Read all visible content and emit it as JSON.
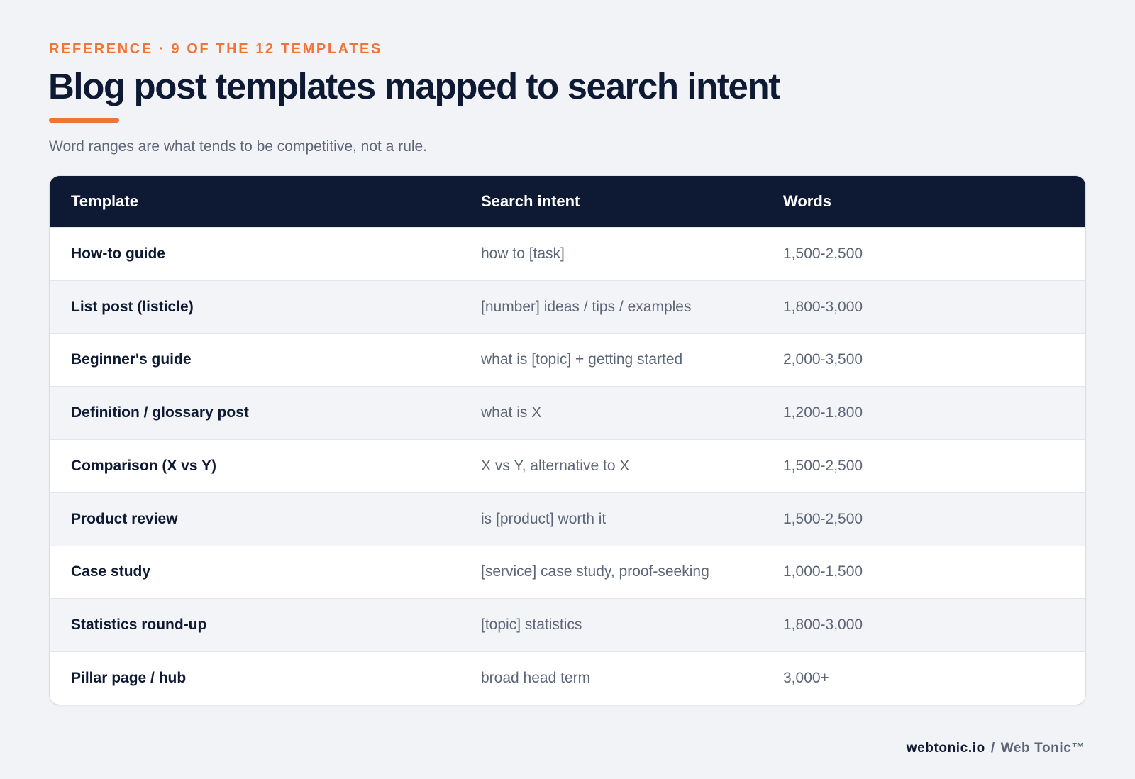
{
  "header": {
    "eyebrow": "REFERENCE · 9 OF THE 12 TEMPLATES",
    "title": "Blog post templates mapped to search intent",
    "subtitle": "Word ranges are what tends to be competitive, not a rule."
  },
  "table": {
    "columns": [
      "Template",
      "Search intent",
      "Words"
    ],
    "rows": [
      {
        "template": "How-to guide",
        "intent": "how to [task]",
        "words": "1,500-2,500"
      },
      {
        "template": "List post (listicle)",
        "intent": "[number] ideas / tips / examples",
        "words": "1,800-3,000"
      },
      {
        "template": "Beginner's guide",
        "intent": "what is [topic] + getting started",
        "words": "2,000-3,500"
      },
      {
        "template": "Definition / glossary post",
        "intent": "what is X",
        "words": "1,200-1,800"
      },
      {
        "template": "Comparison (X vs Y)",
        "intent": "X vs Y, alternative to X",
        "words": "1,500-2,500"
      },
      {
        "template": "Product review",
        "intent": "is [product] worth it",
        "words": "1,500-2,500"
      },
      {
        "template": "Case study",
        "intent": "[service] case study, proof-seeking",
        "words": "1,000-1,500"
      },
      {
        "template": "Statistics round-up",
        "intent": "[topic] statistics",
        "words": "1,800-3,000"
      },
      {
        "template": "Pillar page / hub",
        "intent": "broad head term",
        "words": "3,000+"
      }
    ]
  },
  "footer": {
    "domain": "webtonic.io",
    "separator": "/",
    "brand": "Web Tonic™"
  },
  "colors": {
    "accent": "#ee7438",
    "navy": "#0e1a33",
    "muted_text": "#5d6678",
    "page_background": "#f2f3f6",
    "alt_row": "#f3f4f7"
  }
}
